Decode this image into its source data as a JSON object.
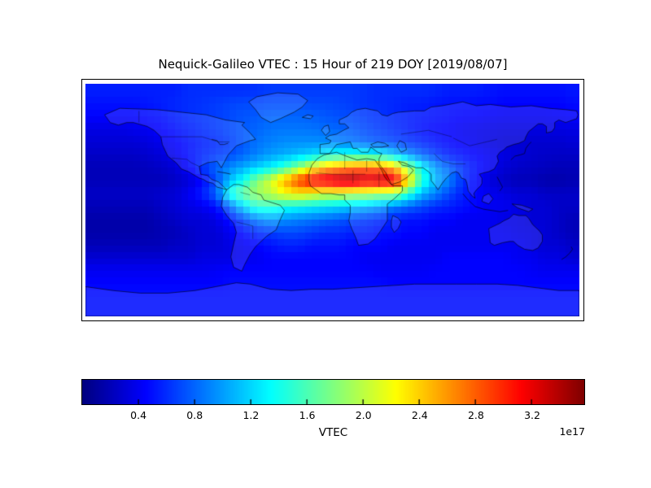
{
  "title": "Nequick-Galileo VTEC : 15 Hour of 219 DOY [2019/08/07]",
  "colorbar": {
    "label": "VTEC",
    "scale_note": "1e17",
    "ticks": [
      "0.4",
      "0.8",
      "1.2",
      "1.6",
      "2.0",
      "2.4",
      "2.8",
      "3.2"
    ],
    "vmin": 0.0,
    "vmax": 3.57,
    "colormap": "jet"
  },
  "chart_data": {
    "type": "heatmap",
    "title": "Nequick-Galileo VTEC : 15 Hour of 219 DOY [2019/08/07]",
    "xlabel": "",
    "ylabel": "",
    "colorbar_label": "VTEC",
    "scale_factor": "1e17",
    "colormap": "jet",
    "vmin": 0.0,
    "vmax": 3.57,
    "extent": {
      "lon": [
        -180,
        180
      ],
      "lat": [
        -90,
        90
      ]
    },
    "lon_centers": [
      -175,
      -165,
      -155,
      -145,
      -135,
      -125,
      -115,
      -105,
      -95,
      -85,
      -75,
      -65,
      -55,
      -45,
      -35,
      -25,
      -15,
      -5,
      5,
      15,
      25,
      35,
      45,
      55,
      65,
      75,
      85,
      95,
      105,
      115,
      125,
      135,
      145,
      155,
      165,
      175
    ],
    "lat_centers": [
      85,
      75,
      65,
      55,
      45,
      35,
      25,
      15,
      5,
      -5,
      -15,
      -25,
      -35,
      -45,
      -55,
      -65,
      -75,
      -85
    ],
    "values_1e17": [
      [
        0.55,
        0.55,
        0.55,
        0.55,
        0.55,
        0.55,
        0.55,
        0.6,
        0.6,
        0.6,
        0.6,
        0.6,
        0.62,
        0.65,
        0.65,
        0.65,
        0.65,
        0.65,
        0.65,
        0.65,
        0.62,
        0.6,
        0.6,
        0.6,
        0.6,
        0.58,
        0.55,
        0.55,
        0.55,
        0.52,
        0.5,
        0.5,
        0.5,
        0.5,
        0.5,
        0.52
      ],
      [
        0.5,
        0.5,
        0.5,
        0.5,
        0.52,
        0.55,
        0.58,
        0.6,
        0.62,
        0.65,
        0.68,
        0.7,
        0.7,
        0.72,
        0.72,
        0.72,
        0.7,
        0.7,
        0.68,
        0.65,
        0.62,
        0.6,
        0.58,
        0.55,
        0.55,
        0.52,
        0.5,
        0.5,
        0.48,
        0.48,
        0.45,
        0.45,
        0.45,
        0.45,
        0.45,
        0.48
      ],
      [
        0.45,
        0.45,
        0.45,
        0.45,
        0.48,
        0.5,
        0.55,
        0.6,
        0.63,
        0.66,
        0.7,
        0.74,
        0.76,
        0.8,
        0.8,
        0.8,
        0.78,
        0.75,
        0.72,
        0.7,
        0.65,
        0.62,
        0.58,
        0.55,
        0.52,
        0.5,
        0.48,
        0.45,
        0.45,
        0.42,
        0.4,
        0.4,
        0.4,
        0.4,
        0.42,
        0.44
      ],
      [
        0.35,
        0.35,
        0.35,
        0.38,
        0.4,
        0.45,
        0.5,
        0.55,
        0.6,
        0.65,
        0.7,
        0.76,
        0.8,
        0.85,
        0.86,
        0.86,
        0.85,
        0.82,
        0.8,
        0.76,
        0.7,
        0.65,
        0.6,
        0.55,
        0.5,
        0.46,
        0.44,
        0.4,
        0.38,
        0.36,
        0.34,
        0.34,
        0.34,
        0.34,
        0.34,
        0.35
      ],
      [
        0.3,
        0.3,
        0.3,
        0.3,
        0.33,
        0.38,
        0.44,
        0.5,
        0.55,
        0.6,
        0.66,
        0.75,
        0.85,
        0.9,
        0.94,
        0.95,
        0.95,
        0.94,
        0.9,
        0.86,
        0.8,
        0.75,
        0.7,
        0.64,
        0.58,
        0.52,
        0.46,
        0.42,
        0.38,
        0.34,
        0.3,
        0.3,
        0.28,
        0.28,
        0.28,
        0.3
      ],
      [
        0.25,
        0.25,
        0.25,
        0.25,
        0.28,
        0.32,
        0.4,
        0.5,
        0.58,
        0.64,
        0.7,
        0.8,
        0.9,
        1.0,
        1.05,
        1.12,
        1.2,
        1.3,
        1.38,
        1.4,
        1.36,
        1.3,
        1.15,
        0.95,
        0.8,
        0.66,
        0.55,
        0.5,
        0.45,
        0.4,
        0.35,
        0.3,
        0.28,
        0.26,
        0.25,
        0.25
      ],
      [
        0.2,
        0.2,
        0.2,
        0.2,
        0.22,
        0.25,
        0.3,
        0.45,
        0.62,
        0.8,
        0.92,
        1.05,
        1.18,
        1.32,
        1.52,
        1.82,
        2.2,
        2.5,
        2.62,
        2.72,
        2.78,
        2.72,
        2.5,
        1.9,
        1.35,
        1.0,
        0.8,
        0.62,
        0.5,
        0.4,
        0.3,
        0.26,
        0.24,
        0.22,
        0.2,
        0.2
      ],
      [
        0.2,
        0.2,
        0.2,
        0.2,
        0.2,
        0.2,
        0.25,
        0.3,
        0.45,
        0.7,
        1.1,
        1.4,
        1.8,
        2.1,
        2.5,
        2.9,
        3.2,
        3.3,
        3.45,
        3.5,
        3.3,
        3.42,
        3.3,
        2.4,
        1.5,
        1.1,
        0.9,
        0.62,
        0.45,
        0.32,
        0.25,
        0.2,
        0.2,
        0.16,
        0.15,
        0.18
      ],
      [
        0.25,
        0.25,
        0.25,
        0.25,
        0.25,
        0.28,
        0.3,
        0.4,
        0.55,
        0.8,
        1.4,
        1.7,
        1.9,
        2.0,
        2.2,
        2.3,
        2.2,
        2.1,
        2.1,
        2.0,
        2.0,
        1.9,
        1.9,
        1.5,
        1.1,
        0.9,
        0.7,
        0.55,
        0.45,
        0.4,
        0.35,
        0.3,
        0.3,
        0.25,
        0.25,
        0.25
      ],
      [
        0.2,
        0.2,
        0.2,
        0.2,
        0.2,
        0.25,
        0.3,
        0.35,
        0.4,
        0.5,
        0.8,
        1.2,
        1.5,
        1.5,
        1.4,
        1.35,
        1.3,
        1.25,
        1.2,
        1.15,
        1.1,
        1.0,
        0.9,
        0.8,
        0.7,
        0.6,
        0.55,
        0.5,
        0.45,
        0.4,
        0.4,
        0.35,
        0.3,
        0.3,
        0.25,
        0.25
      ],
      [
        0.15,
        0.15,
        0.15,
        0.15,
        0.15,
        0.2,
        0.25,
        0.3,
        0.3,
        0.35,
        0.5,
        0.7,
        0.9,
        1.0,
        0.95,
        0.9,
        0.85,
        0.8,
        0.75,
        0.7,
        0.65,
        0.6,
        0.55,
        0.5,
        0.5,
        0.45,
        0.45,
        0.4,
        0.4,
        0.4,
        0.35,
        0.35,
        0.3,
        0.3,
        0.25,
        0.2
      ],
      [
        0.15,
        0.15,
        0.15,
        0.15,
        0.15,
        0.18,
        0.2,
        0.25,
        0.3,
        0.3,
        0.4,
        0.5,
        0.6,
        0.65,
        0.7,
        0.7,
        0.65,
        0.6,
        0.6,
        0.55,
        0.55,
        0.5,
        0.5,
        0.45,
        0.45,
        0.4,
        0.4,
        0.4,
        0.4,
        0.4,
        0.4,
        0.35,
        0.35,
        0.3,
        0.25,
        0.2
      ],
      [
        0.2,
        0.2,
        0.2,
        0.2,
        0.2,
        0.2,
        0.25,
        0.25,
        0.3,
        0.3,
        0.35,
        0.4,
        0.45,
        0.5,
        0.55,
        0.55,
        0.5,
        0.5,
        0.5,
        0.45,
        0.45,
        0.45,
        0.4,
        0.4,
        0.4,
        0.4,
        0.4,
        0.4,
        0.4,
        0.4,
        0.4,
        0.4,
        0.35,
        0.3,
        0.3,
        0.25
      ],
      [
        0.3,
        0.3,
        0.3,
        0.3,
        0.3,
        0.3,
        0.3,
        0.3,
        0.35,
        0.35,
        0.35,
        0.4,
        0.4,
        0.45,
        0.45,
        0.45,
        0.45,
        0.45,
        0.45,
        0.45,
        0.4,
        0.4,
        0.4,
        0.4,
        0.4,
        0.4,
        0.45,
        0.45,
        0.45,
        0.45,
        0.45,
        0.4,
        0.4,
        0.35,
        0.35,
        0.3
      ],
      [
        0.4,
        0.4,
        0.4,
        0.4,
        0.4,
        0.4,
        0.4,
        0.4,
        0.4,
        0.42,
        0.45,
        0.45,
        0.45,
        0.45,
        0.45,
        0.45,
        0.45,
        0.45,
        0.45,
        0.45,
        0.45,
        0.42,
        0.42,
        0.42,
        0.42,
        0.45,
        0.45,
        0.45,
        0.45,
        0.45,
        0.45,
        0.45,
        0.42,
        0.4,
        0.4,
        0.4
      ],
      [
        0.45,
        0.45,
        0.45,
        0.45,
        0.45,
        0.45,
        0.45,
        0.45,
        0.45,
        0.45,
        0.48,
        0.48,
        0.48,
        0.48,
        0.48,
        0.48,
        0.48,
        0.48,
        0.48,
        0.48,
        0.48,
        0.48,
        0.45,
        0.45,
        0.45,
        0.45,
        0.45,
        0.45,
        0.45,
        0.45,
        0.45,
        0.45,
        0.45,
        0.45,
        0.45,
        0.45
      ],
      [
        0.5,
        0.5,
        0.5,
        0.5,
        0.5,
        0.5,
        0.5,
        0.5,
        0.5,
        0.5,
        0.5,
        0.5,
        0.5,
        0.5,
        0.5,
        0.5,
        0.5,
        0.5,
        0.5,
        0.5,
        0.5,
        0.5,
        0.5,
        0.5,
        0.5,
        0.5,
        0.5,
        0.5,
        0.5,
        0.5,
        0.5,
        0.5,
        0.5,
        0.5,
        0.5,
        0.5
      ],
      [
        0.5,
        0.5,
        0.5,
        0.5,
        0.5,
        0.5,
        0.5,
        0.5,
        0.5,
        0.5,
        0.5,
        0.5,
        0.5,
        0.5,
        0.5,
        0.5,
        0.5,
        0.5,
        0.5,
        0.5,
        0.5,
        0.5,
        0.5,
        0.5,
        0.5,
        0.5,
        0.5,
        0.5,
        0.5,
        0.5,
        0.5,
        0.5,
        0.5,
        0.5,
        0.5,
        0.5
      ]
    ]
  }
}
